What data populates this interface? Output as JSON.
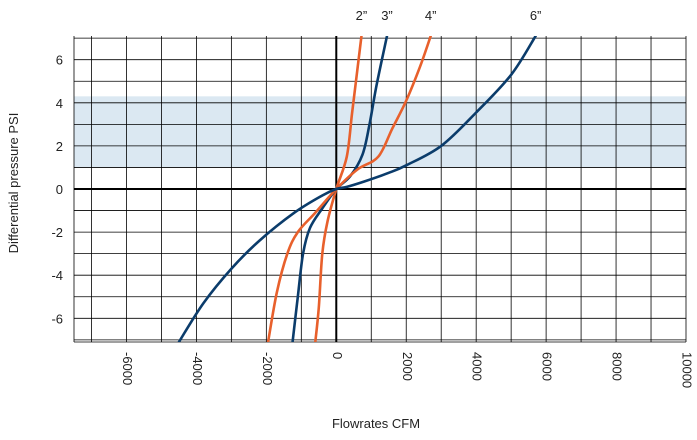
{
  "chart_data": {
    "type": "line",
    "title": "",
    "xlabel": "Flowrates CFM",
    "ylabel": "Differential pressure PSI",
    "xlim": [
      -7500,
      10000
    ],
    "ylim": [
      -7.1,
      7.1
    ],
    "x_ticks": [
      {
        "value": -6000,
        "label": "-6000"
      },
      {
        "value": -4000,
        "label": "-4000"
      },
      {
        "value": -2000,
        "label": "-2000"
      },
      {
        "value": 0,
        "label": "0"
      },
      {
        "value": 2000,
        "label": "2000"
      },
      {
        "value": 4000,
        "label": "4000"
      },
      {
        "value": 6000,
        "label": "6000"
      },
      {
        "value": 8000,
        "label": "8000"
      },
      {
        "value": 10000,
        "label": "10000"
      }
    ],
    "y_ticks": [
      {
        "value": 6,
        "label": "6"
      },
      {
        "value": 4,
        "label": "4"
      },
      {
        "value": 2,
        "label": "2"
      },
      {
        "value": 0,
        "label": "0"
      },
      {
        "value": -2,
        "label": "-2"
      },
      {
        "value": -4,
        "label": "-4"
      },
      {
        "value": -6,
        "label": "-6"
      }
    ],
    "grid": true,
    "highlight_band": {
      "y_from": 1.0,
      "y_to": 4.3,
      "color": "#dbe8f2"
    },
    "colors": {
      "navy": "#0b3c6b",
      "orange": "#e8602c",
      "grid": "#000000",
      "axis": "#000000"
    },
    "series": [
      {
        "name": "2”",
        "color": "#e8602c",
        "points": [
          [
            -600,
            -7.1
          ],
          [
            -500,
            -5.5
          ],
          [
            -400,
            -3.0
          ],
          [
            -250,
            -1.5
          ],
          [
            0,
            0
          ],
          [
            300,
            1.5
          ],
          [
            450,
            3.5
          ],
          [
            600,
            5.5
          ],
          [
            720,
            7.1
          ]
        ]
      },
      {
        "name": "3”",
        "color": "#0b3c6b",
        "points": [
          [
            -1250,
            -7.1
          ],
          [
            -1100,
            -5.0
          ],
          [
            -950,
            -3.0
          ],
          [
            -750,
            -1.8
          ],
          [
            -400,
            -0.9
          ],
          [
            0,
            0
          ],
          [
            400,
            0.6
          ],
          [
            750,
            1.6
          ],
          [
            950,
            3.0
          ],
          [
            1150,
            4.8
          ],
          [
            1450,
            7.1
          ]
        ]
      },
      {
        "name": "4”",
        "color": "#e8602c",
        "points": [
          [
            -1950,
            -7.1
          ],
          [
            -1700,
            -4.8
          ],
          [
            -1400,
            -3.0
          ],
          [
            -1100,
            -2.0
          ],
          [
            -600,
            -1.1
          ],
          [
            0,
            0
          ],
          [
            600,
            0.9
          ],
          [
            1200,
            1.5
          ],
          [
            1600,
            2.8
          ],
          [
            2000,
            4.1
          ],
          [
            2400,
            5.7
          ],
          [
            2700,
            7.1
          ]
        ]
      },
      {
        "name": "6”",
        "color": "#0b3c6b",
        "points": [
          [
            -4500,
            -7.1
          ],
          [
            -3800,
            -5.3
          ],
          [
            -3000,
            -3.7
          ],
          [
            -2200,
            -2.4
          ],
          [
            -1200,
            -1.1
          ],
          [
            -400,
            -0.3
          ],
          [
            0,
            0
          ],
          [
            300,
            0.1
          ],
          [
            800,
            0.35
          ],
          [
            1500,
            0.75
          ],
          [
            2000,
            1.1
          ],
          [
            3000,
            2.0
          ],
          [
            4000,
            3.55
          ],
          [
            5000,
            5.3
          ],
          [
            5700,
            7.1
          ]
        ]
      }
    ]
  }
}
